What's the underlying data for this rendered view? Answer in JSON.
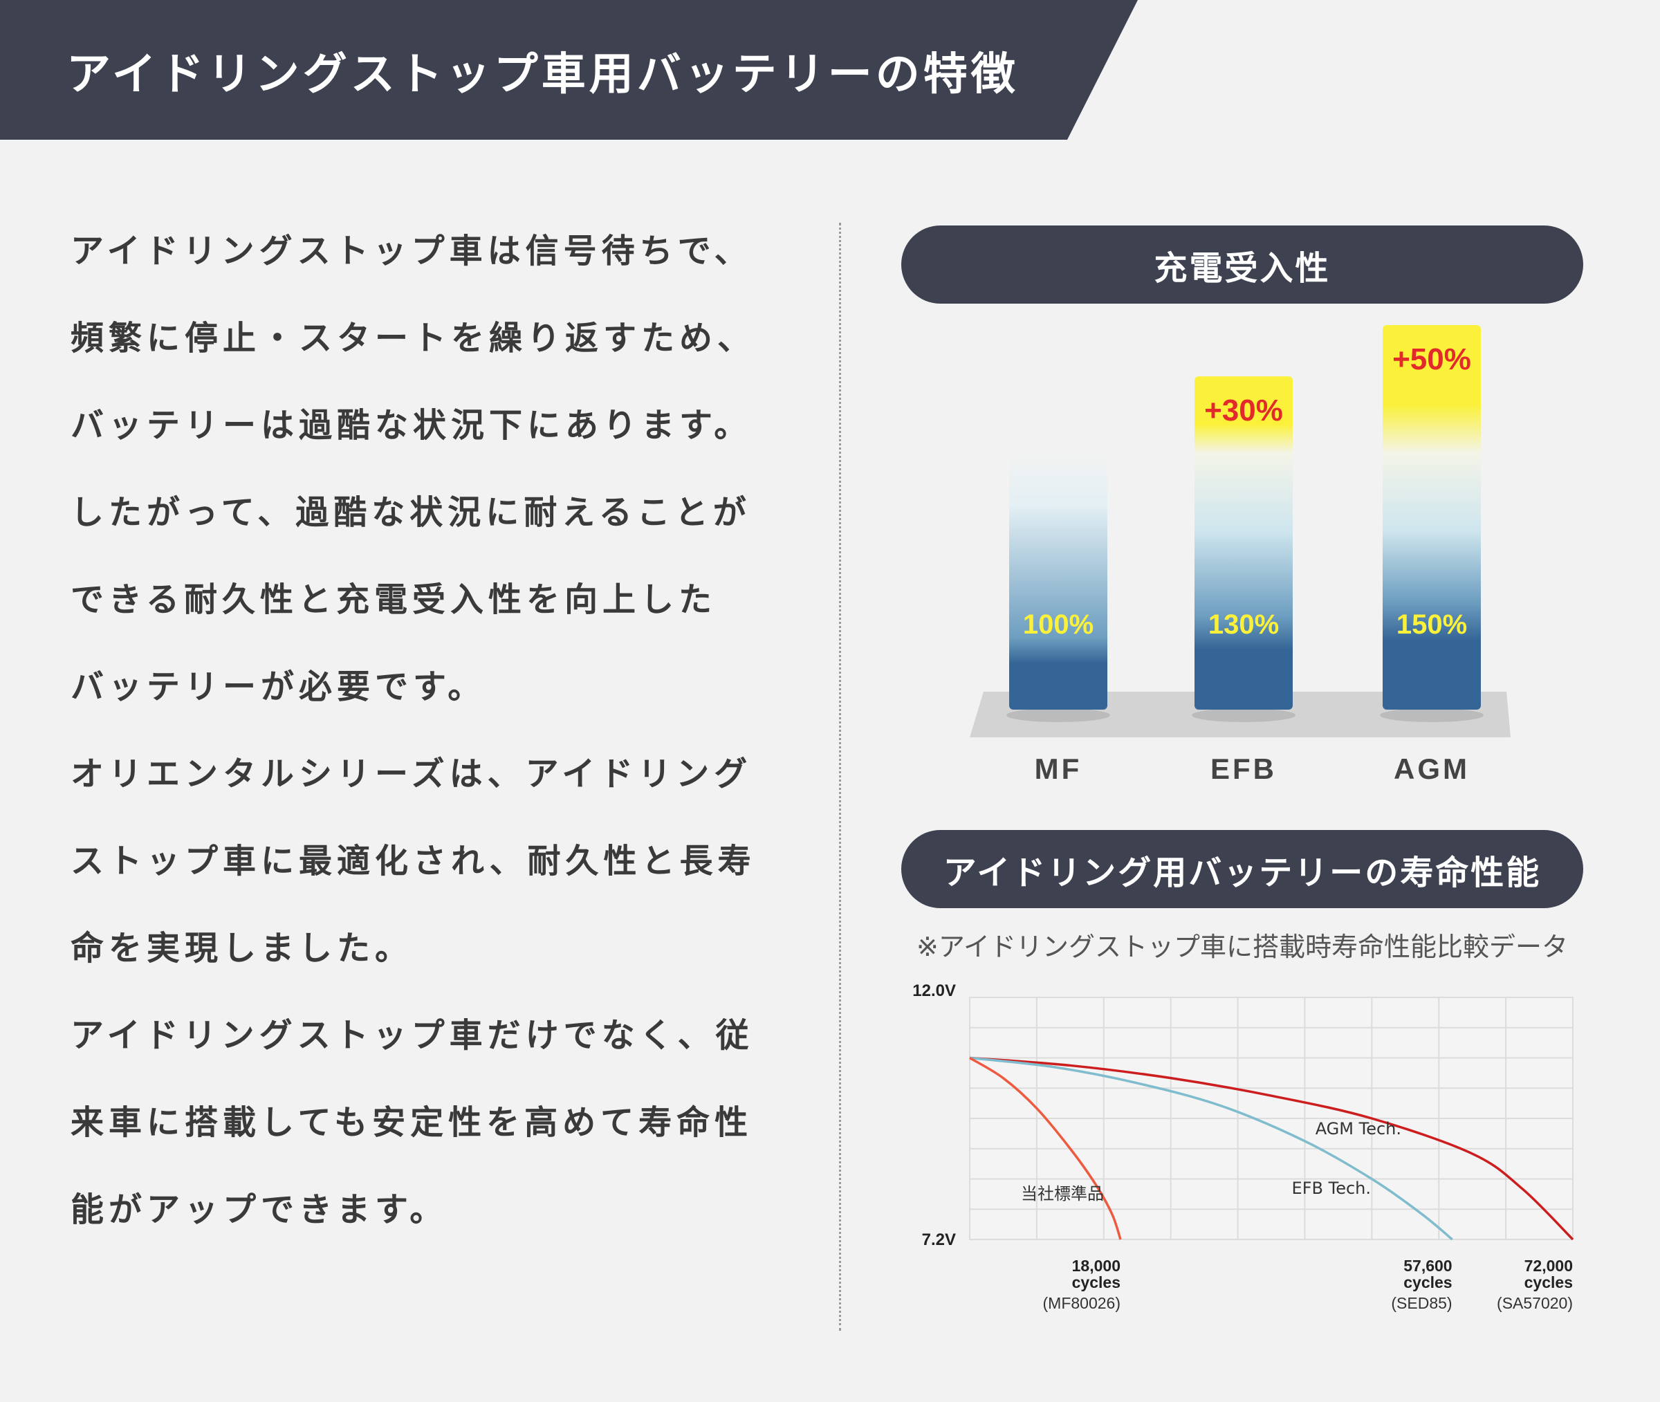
{
  "header": {
    "title": "アイドリングストップ車用バッテリーの特徴"
  },
  "body_text": [
    "アイドリングストップ車は信号待ちで、",
    "頻繁に停止・スタートを繰り返すため、",
    "バッテリーは過酷な状況下にあります。",
    "したがって、過酷な状況に耐えることが",
    "できる耐久性と充電受入性を向上した",
    "バッテリーが必要です。",
    "オリエンタルシリーズは、アイドリング",
    "ストップ車に最適化され、耐久性と長寿",
    "命を実現しました。",
    "アイドリングストップ車だけでなく、従",
    "来車に搭載しても安定性を高めて寿命性",
    "能がアップできます。"
  ],
  "colors": {
    "dark": "#3e414f",
    "bar_blue": "#356596",
    "highlight_yellow": "#fbf13b",
    "label_red": "#e32a2a",
    "agm_line": "#cc1e1e",
    "efb_line": "#7fbccd",
    "std_line": "#ee5a40"
  },
  "chart_data": [
    {
      "type": "bar",
      "title": "充電受入性",
      "categories": [
        "MF",
        "EFB",
        "AGM"
      ],
      "values": [
        100,
        130,
        150
      ],
      "value_labels": [
        "100%",
        "130%",
        "150%"
      ],
      "increase_labels": [
        "",
        "+30%",
        "+50%"
      ],
      "ylim": [
        0,
        150
      ]
    },
    {
      "type": "line",
      "title": "アイドリング用バッテリーの寿命性能",
      "note": "※アイドリングストップ車に搭載時寿命性能比較データ",
      "y_tick_labels": [
        "12.0V",
        "7.2V"
      ],
      "ylim": [
        7.2,
        12.0
      ],
      "xlim": [
        0,
        72000
      ],
      "grid": true,
      "x_markers": [
        {
          "value": 18000,
          "line1": "18,000",
          "line2": "cycles",
          "model": "(MF80026)"
        },
        {
          "value": 57600,
          "line1": "57,600",
          "line2": "cycles",
          "model": "(SED85)"
        },
        {
          "value": 72000,
          "line1": "72,000",
          "line2": "cycles",
          "model": "(SA57020)"
        }
      ],
      "series": [
        {
          "name": "AGM Tech.",
          "color": "#cc1e1e",
          "x": [
            0,
            12000,
            24000,
            36000,
            48000,
            60000,
            66000,
            72000
          ],
          "y": [
            10.8,
            10.65,
            10.4,
            10.05,
            9.6,
            8.9,
            8.2,
            7.2
          ]
        },
        {
          "name": "EFB Tech.",
          "color": "#7fbccd",
          "x": [
            0,
            10000,
            20000,
            30000,
            40000,
            48000,
            54000,
            57600
          ],
          "y": [
            10.8,
            10.62,
            10.3,
            9.85,
            9.15,
            8.4,
            7.7,
            7.2
          ]
        },
        {
          "name": "当社標準品",
          "color": "#ee5a40",
          "x": [
            0,
            4000,
            8000,
            12000,
            15000,
            17000,
            18000
          ],
          "y": [
            10.8,
            10.4,
            9.8,
            9.0,
            8.3,
            7.7,
            7.2
          ]
        }
      ]
    }
  ]
}
